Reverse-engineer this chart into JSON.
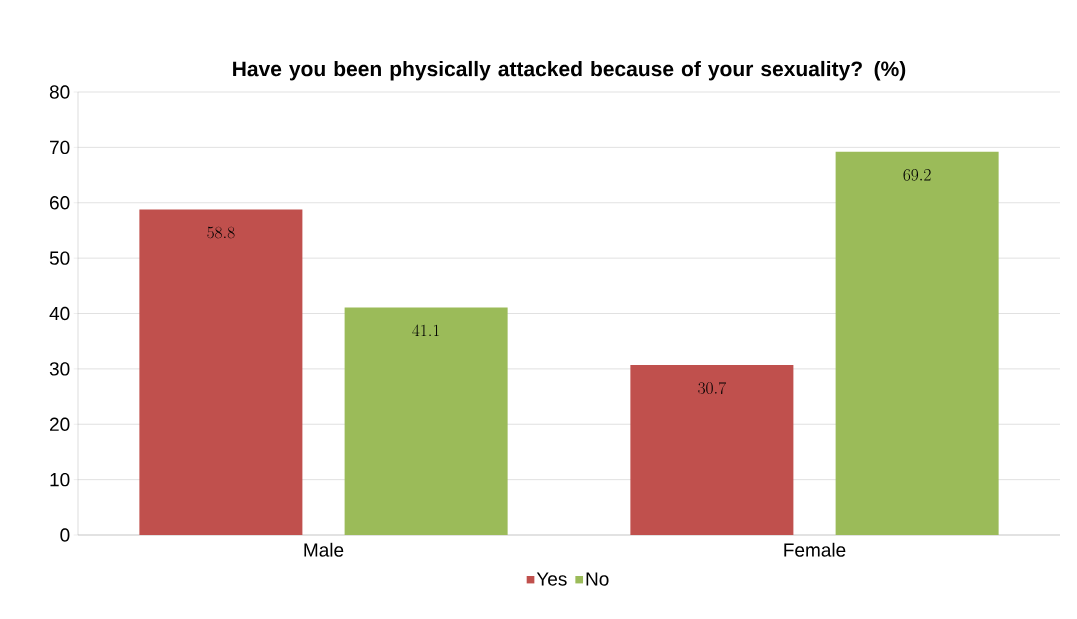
{
  "chart_data": {
    "type": "bar",
    "title": "Have you been physically attacked because of your sexuality? (%)",
    "categories": [
      "Male",
      "Female"
    ],
    "series": [
      {
        "name": "Yes",
        "color": "#c0504d",
        "values": [
          58.8,
          30.7
        ]
      },
      {
        "name": "No",
        "color": "#9bbb59",
        "values": [
          41.1,
          69.2
        ]
      }
    ],
    "ylim": [
      0,
      80
    ],
    "yticks": [
      0,
      10,
      20,
      30,
      40,
      50,
      60,
      70,
      80
    ],
    "grid": "y",
    "legend": "bottom",
    "data_labels": true
  }
}
